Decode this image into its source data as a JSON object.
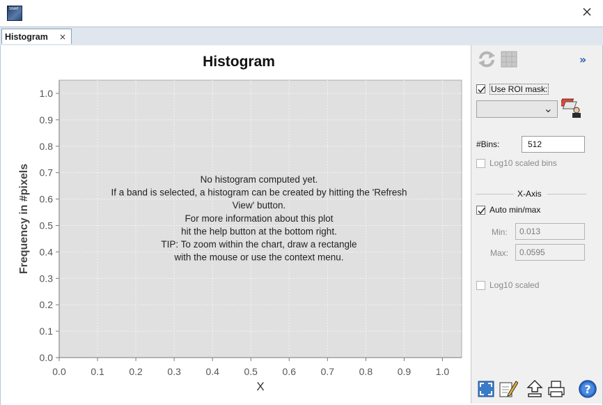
{
  "window": {
    "app_icon_text": "SNAP",
    "close_glyph": "×"
  },
  "tabs": [
    {
      "label": "Histogram",
      "close_glyph": "×"
    }
  ],
  "chart_data": {
    "type": "line",
    "title": "Histogram",
    "xlabel": "X",
    "ylabel": "Frequency in #pixels",
    "xlim": [
      0.0,
      1.05
    ],
    "ylim": [
      0.0,
      1.05
    ],
    "x_ticks": [
      "0.0",
      "0.1",
      "0.2",
      "0.3",
      "0.4",
      "0.5",
      "0.6",
      "0.7",
      "0.8",
      "0.9",
      "1.0"
    ],
    "y_ticks": [
      "0.0",
      "0.1",
      "0.2",
      "0.3",
      "0.4",
      "0.5",
      "0.6",
      "0.7",
      "0.8",
      "0.9",
      "1.0"
    ],
    "series": [],
    "grid": true,
    "plot_background": "#e0e0e0",
    "message_lines": [
      "No histogram computed yet.",
      "If a band is selected, a histogram can be created by hitting the 'Refresh",
      "View' button.",
      "For more information about this plot",
      "hit the help button at the bottom right.",
      "TIP: To zoom within the chart, draw a rectangle",
      "with the mouse or use the context menu."
    ]
  },
  "side_panel": {
    "toolbar": {
      "refresh_icon": "refresh-icon",
      "grid_toggle_icon": "grid-table-icon",
      "collapse_glyph": "»"
    },
    "use_roi_mask": {
      "label": "Use ROI mask:",
      "checked": true
    },
    "roi_mask_select": {
      "value": "",
      "chevron": "⌄"
    },
    "mask_manager_icon": "mask-manager-icon",
    "bins": {
      "label": "#Bins:",
      "value": "512"
    },
    "log10_bins": {
      "label": "Log10 scaled bins",
      "checked": false,
      "enabled": false
    },
    "x_axis": {
      "section_title": "X-Axis",
      "auto_minmax": {
        "label": "Auto min/max",
        "checked": true
      },
      "min": {
        "label": "Min:",
        "value": "0.013"
      },
      "max": {
        "label": "Max:",
        "value": "0.0595"
      },
      "log10_scaled": {
        "label": "Log10 scaled",
        "checked": false,
        "enabled": false
      }
    },
    "bottom_toolbar": [
      "zoom-all-icon",
      "edit-icon",
      "export-icon",
      "print-icon",
      "help-icon"
    ]
  },
  "colors": {
    "plot_background": "#e0e0e0",
    "panel_background": "#f0f0f0",
    "tab_bar": "#dfe6ee",
    "help_blue": "#2a6fd1"
  }
}
